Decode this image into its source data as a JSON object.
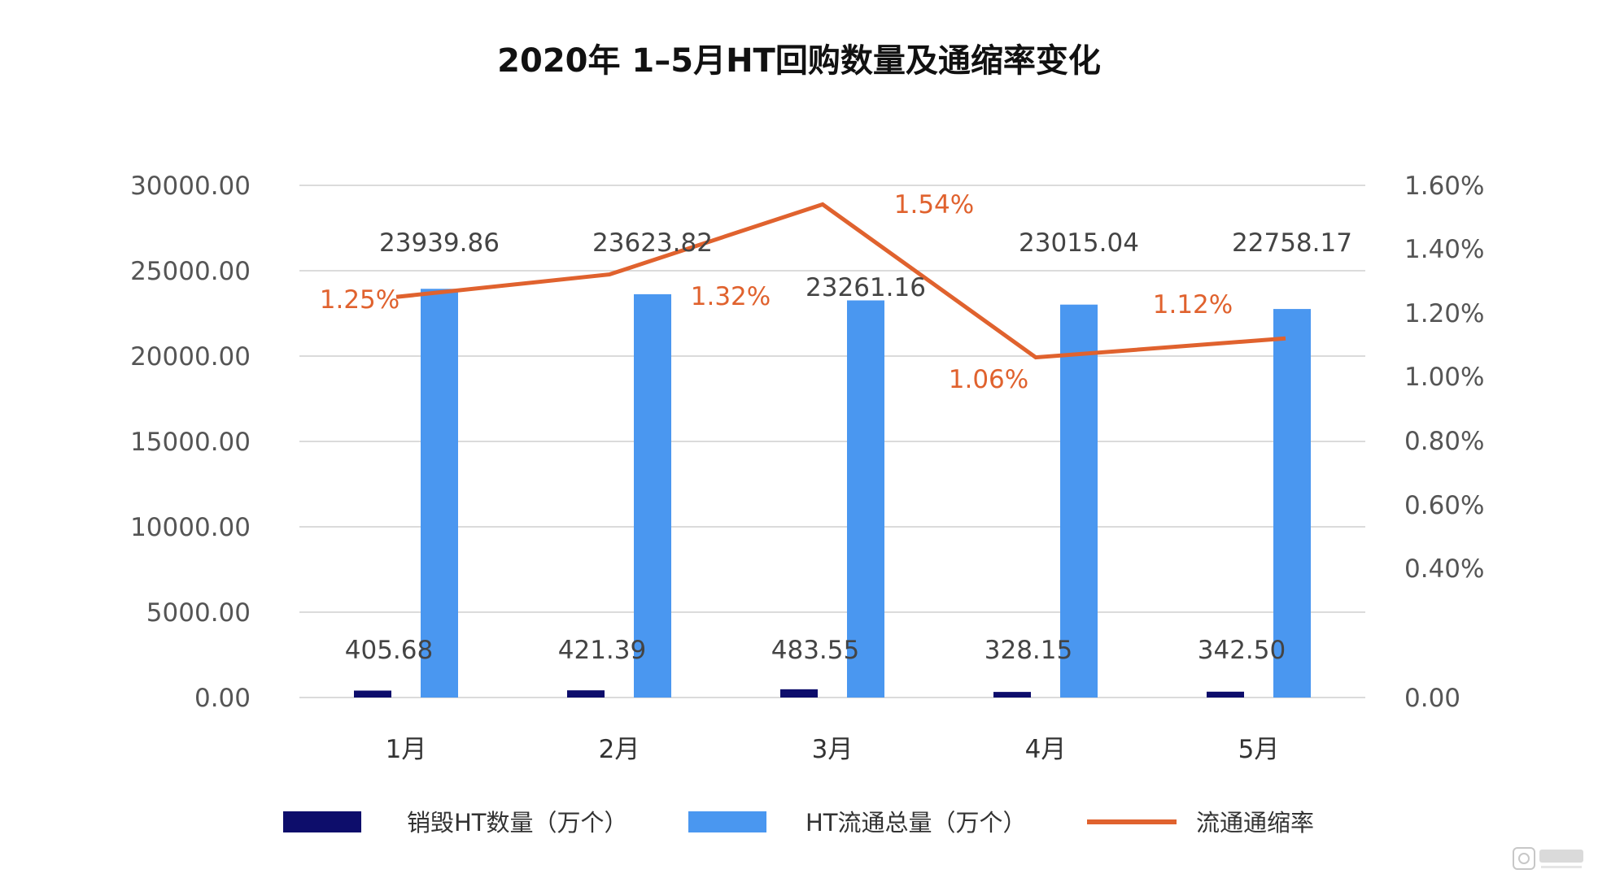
{
  "chart_data": {
    "type": "bar",
    "title": "2020年 1–5月HT回购数量及通缩率变化",
    "categories": [
      "1月",
      "2月",
      "3月",
      "4月",
      "5月"
    ],
    "series": [
      {
        "name": "销毁HT数量（万个）",
        "kind": "bar",
        "axis": "left",
        "color": "#0d0d6b",
        "values": [
          405.68,
          421.39,
          483.55,
          328.15,
          342.5
        ],
        "labels": [
          "405.68",
          "421.39",
          "483.55",
          "328.15",
          "342.50"
        ]
      },
      {
        "name": "HT流通总量（万个）",
        "kind": "bar",
        "axis": "left",
        "color": "#4a97f0",
        "values": [
          23939.86,
          23623.82,
          23261.16,
          23015.04,
          22758.17
        ],
        "labels": [
          "23939.86",
          "23623.82",
          "23261.16",
          "23015.04",
          "22758.17"
        ]
      },
      {
        "name": "流通通缩率",
        "kind": "line",
        "axis": "right",
        "color": "#e0622e",
        "values": [
          1.25,
          1.32,
          1.54,
          1.06,
          1.12
        ],
        "labels": [
          "1.25%",
          "1.32%",
          "1.54%",
          "1.06%",
          "1.12%"
        ]
      }
    ],
    "y_left": {
      "ylim": [
        0,
        30000
      ],
      "ticks": [
        0,
        5000,
        10000,
        15000,
        20000,
        25000,
        30000
      ],
      "tick_labels": [
        "0.00",
        "5000.00",
        "10000.00",
        "15000.00",
        "20000.00",
        "25000.00",
        "30000.00"
      ]
    },
    "y_right": {
      "tick_values": [
        0,
        0.4,
        0.6,
        0.8,
        1.0,
        1.2,
        1.4,
        1.6
      ],
      "tick_labels": [
        "0.00",
        "0.40%",
        "0.60%",
        "0.80%",
        "1.00%",
        "1.20%",
        "1.40%",
        "1.60%"
      ]
    },
    "grid": true,
    "legend_position": "bottom",
    "colors": {
      "grid": "#cfcfcf",
      "axis_text": "#555555",
      "title_text": "#111111",
      "line_label": "#e0622e"
    }
  }
}
